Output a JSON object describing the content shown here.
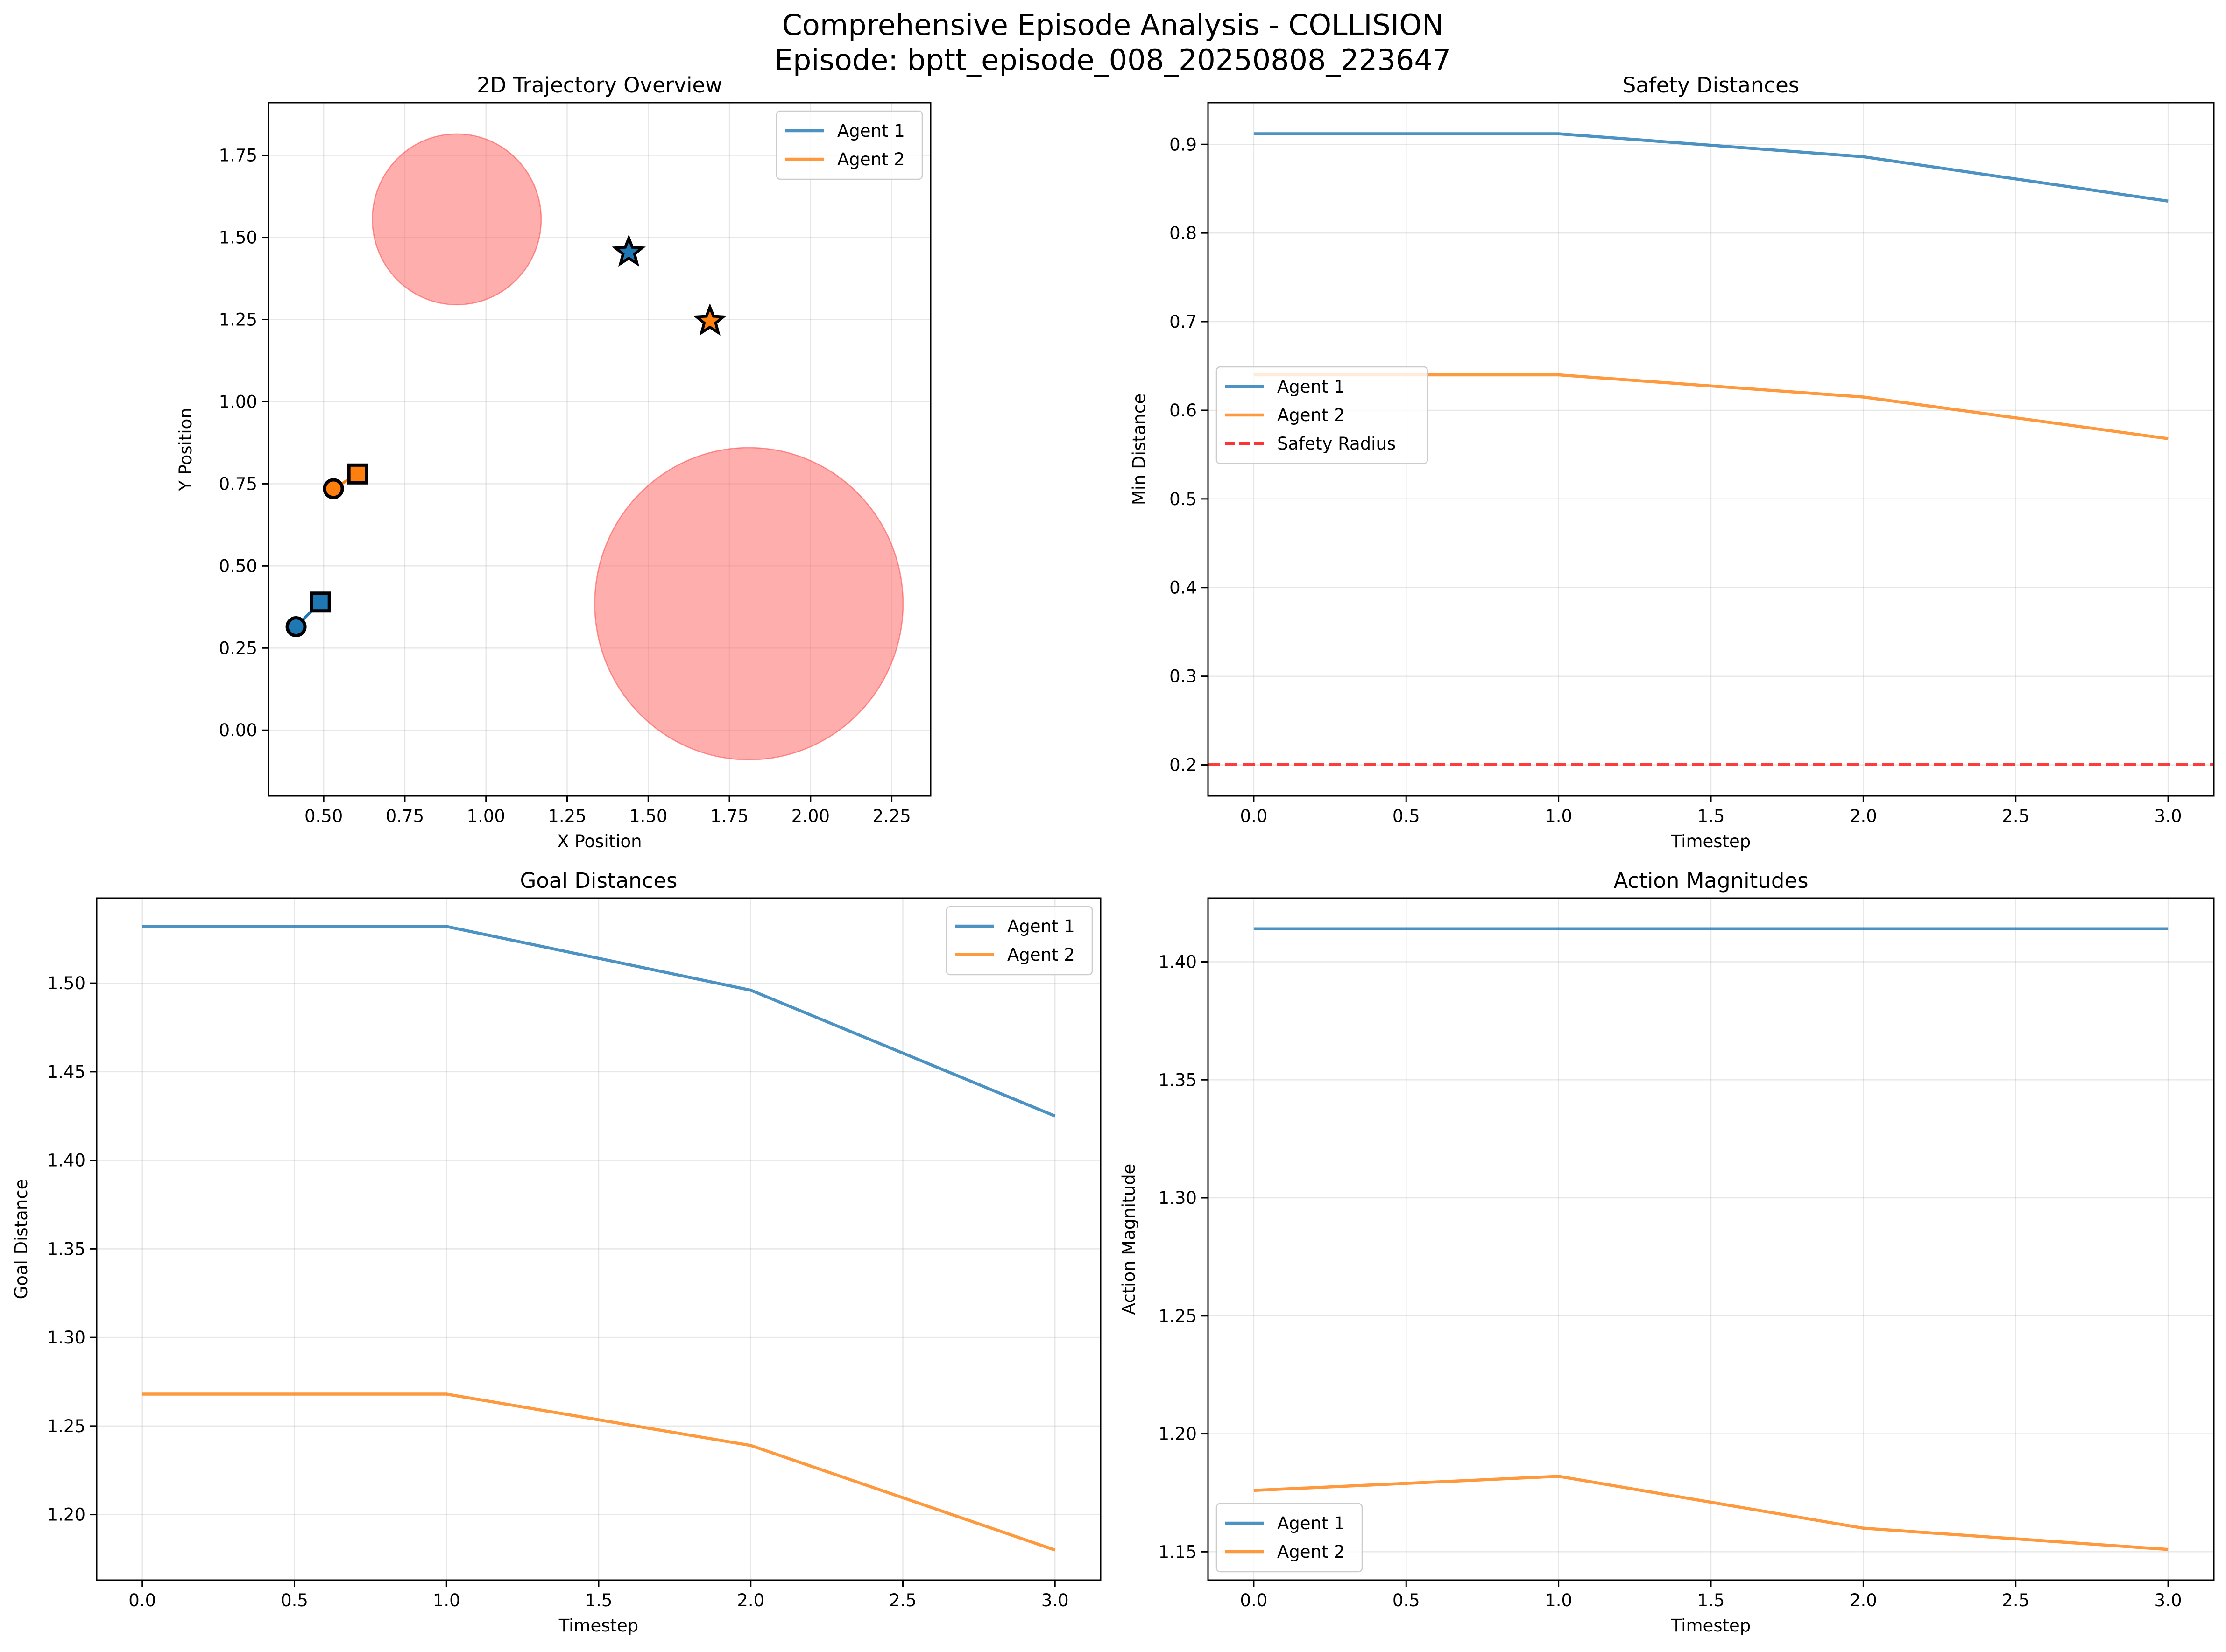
{
  "figure": {
    "title_line1": "Comprehensive Episode Analysis - COLLISION",
    "title_line2": "Episode: bptt_episode_008_20250808_223647"
  },
  "colors": {
    "agent1": "#1f77b4",
    "agent2": "#ff7f0e",
    "safety": "#ff0000",
    "obstacle": "#ff6b6b",
    "grid": "#b0b0b0"
  },
  "chart_data": [
    {
      "id": "trajectory",
      "type": "scatter",
      "title": "2D Trajectory Overview",
      "xlabel": "X Position",
      "ylabel": "Y Position",
      "xlim": [
        0.33,
        2.37
      ],
      "ylim": [
        -0.2,
        1.91
      ],
      "xticks": [
        "0.50",
        "0.75",
        "1.00",
        "1.25",
        "1.50",
        "1.75",
        "2.00",
        "2.25"
      ],
      "yticks": [
        "0.00",
        "0.25",
        "0.50",
        "0.75",
        "1.00",
        "1.25",
        "1.50",
        "1.75"
      ],
      "grid": true,
      "legend_position": "upper right",
      "obstacles": [
        {
          "cx": 0.91,
          "cy": 1.555,
          "r": 0.26
        },
        {
          "cx": 1.81,
          "cy": 0.385,
          "r": 0.475
        }
      ],
      "series": [
        {
          "name": "Agent 1",
          "color": "#1f77b4",
          "x": [
            0.415,
            0.49
          ],
          "y": [
            0.315,
            0.39
          ],
          "goal": {
            "x": 1.44,
            "y": 1.455
          }
        },
        {
          "name": "Agent 2",
          "color": "#ff7f0e",
          "x": [
            0.53,
            0.605
          ],
          "y": [
            0.735,
            0.78
          ],
          "goal": {
            "x": 1.69,
            "y": 1.245
          }
        }
      ]
    },
    {
      "id": "safety",
      "type": "line",
      "title": "Safety Distances",
      "xlabel": "Timestep",
      "ylabel": "Min Distance",
      "xlim": [
        -0.15,
        3.15
      ],
      "ylim": [
        0.165,
        0.947
      ],
      "xticks": [
        "0.0",
        "0.5",
        "1.0",
        "1.5",
        "2.0",
        "2.5",
        "3.0"
      ],
      "yticks": [
        "0.2",
        "0.3",
        "0.4",
        "0.5",
        "0.6",
        "0.7",
        "0.8",
        "0.9"
      ],
      "grid": true,
      "legend_position": "center left",
      "x": [
        0,
        1,
        2,
        3
      ],
      "series": [
        {
          "name": "Agent 1",
          "color": "#1f77b4",
          "values": [
            0.912,
            0.912,
            0.886,
            0.836
          ]
        },
        {
          "name": "Agent 2",
          "color": "#ff7f0e",
          "values": [
            0.64,
            0.64,
            0.615,
            0.568
          ]
        }
      ],
      "hline": {
        "name": "Safety Radius",
        "value": 0.2,
        "color": "#ff0000"
      }
    },
    {
      "id": "goal",
      "type": "line",
      "title": "Goal Distances",
      "xlabel": "Timestep",
      "ylabel": "Goal Distance",
      "xlim": [
        -0.15,
        3.15
      ],
      "ylim": [
        1.163,
        1.548
      ],
      "xticks": [
        "0.0",
        "0.5",
        "1.0",
        "1.5",
        "2.0",
        "2.5",
        "3.0"
      ],
      "yticks": [
        "1.20",
        "1.25",
        "1.30",
        "1.35",
        "1.40",
        "1.45",
        "1.50"
      ],
      "grid": true,
      "legend_position": "upper right",
      "x": [
        0,
        1,
        2,
        3
      ],
      "series": [
        {
          "name": "Agent 1",
          "color": "#1f77b4",
          "values": [
            1.532,
            1.532,
            1.496,
            1.425
          ]
        },
        {
          "name": "Agent 2",
          "color": "#ff7f0e",
          "values": [
            1.268,
            1.268,
            1.239,
            1.18
          ]
        }
      ]
    },
    {
      "id": "action",
      "type": "line",
      "title": "Action Magnitudes",
      "xlabel": "Timestep",
      "ylabel": "Action Magnitude",
      "xlim": [
        -0.15,
        3.15
      ],
      "ylim": [
        1.138,
        1.427
      ],
      "xticks": [
        "0.0",
        "0.5",
        "1.0",
        "1.5",
        "2.0",
        "2.5",
        "3.0"
      ],
      "yticks": [
        "1.15",
        "1.20",
        "1.25",
        "1.30",
        "1.35",
        "1.40"
      ],
      "grid": true,
      "legend_position": "lower left",
      "x": [
        0,
        1,
        2,
        3
      ],
      "series": [
        {
          "name": "Agent 1",
          "color": "#1f77b4",
          "values": [
            1.414,
            1.414,
            1.414,
            1.414
          ]
        },
        {
          "name": "Agent 2",
          "color": "#ff7f0e",
          "values": [
            1.176,
            1.182,
            1.16,
            1.151
          ]
        }
      ]
    }
  ]
}
